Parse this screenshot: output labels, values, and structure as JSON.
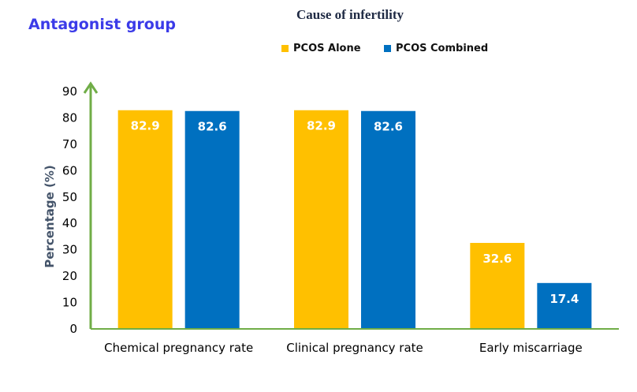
{
  "group_title": "Antagonist group",
  "chart_data": {
    "type": "bar",
    "legend_title": "Cause of infertility",
    "categories": [
      "Chemical pregnancy rate",
      "Clinical pregnancy rate",
      "Early miscarriage"
    ],
    "series": [
      {
        "name": "PCOS Alone",
        "values": [
          82.9,
          82.9,
          32.6
        ],
        "color": "#ffc000"
      },
      {
        "name": "PCOS Combined",
        "values": [
          82.6,
          82.6,
          17.4
        ],
        "color": "#0070c0"
      }
    ],
    "ylabel": "Percentage (%)",
    "ylim": [
      0,
      90
    ],
    "yticks": [
      0,
      10,
      20,
      30,
      40,
      50,
      60,
      70,
      80,
      90
    ],
    "legend_position": "top",
    "grid": false,
    "axis_color": "#70ad47",
    "label_color": "#44546a"
  }
}
